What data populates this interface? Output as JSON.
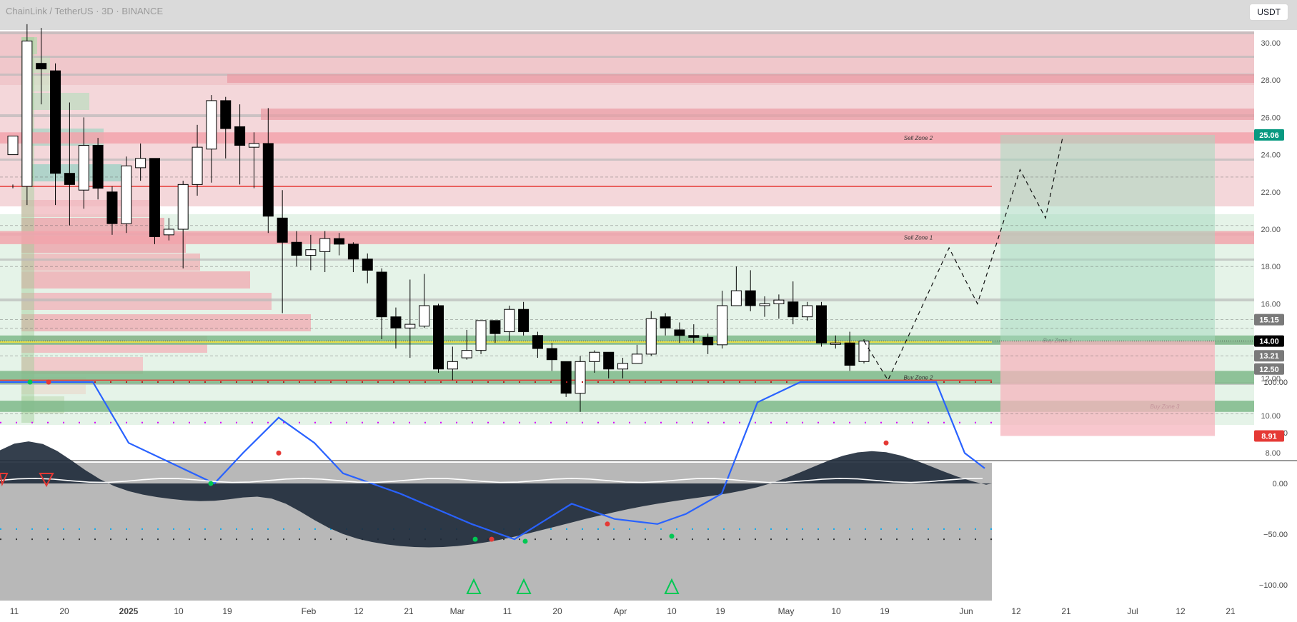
{
  "header": {
    "title": "ChainLink / TetherUS · 3D · BINANCE"
  },
  "toolbar": {
    "currency": "USDT"
  },
  "colors": {
    "sell_zone": "#f2a3ab",
    "buy_zone": "#7fb98a",
    "up_candle": "#ffffff",
    "down_candle": "#000000",
    "target_box": "#a8d8c0",
    "stop_box": "#f6b4bd",
    "indicator_bg": "#b8b8b8",
    "wave_blue": "#2962ff",
    "support_red": "#e53935",
    "current_line": "#ffeb3b"
  },
  "chart_data": {
    "type": "candlestick",
    "title": "ChainLink / TetherUS · 3D · BINANCE",
    "y_axis": {
      "ticks": [
        "30.00",
        "28.00",
        "26.00",
        "24.00",
        "22.00",
        "20.00",
        "18.00",
        "16.00",
        "14.00",
        "12.00",
        "10.00",
        "8.00"
      ],
      "range": [
        8,
        31.5
      ]
    },
    "x_axis": {
      "labels": [
        "11",
        "20",
        "2025",
        "10",
        "19",
        "Feb",
        "12",
        "21",
        "Mar",
        "11",
        "20",
        "Apr",
        "10",
        "19",
        "May",
        "10",
        "19",
        "Jun",
        "12",
        "21",
        "Jul",
        "12",
        "21"
      ]
    },
    "price_tags": [
      {
        "label": "25.06",
        "value": 25.06,
        "style": "teal"
      },
      {
        "label": "15.15",
        "value": 15.15,
        "style": "gray"
      },
      {
        "label": "14.00",
        "value": 14.0,
        "style": "black"
      },
      {
        "label": "13.21",
        "value": 13.21,
        "style": "gray"
      },
      {
        "label": "12.50",
        "value": 12.5,
        "style": "gray"
      },
      {
        "label": "8.91",
        "value": 8.91,
        "style": "red"
      }
    ],
    "zones": [
      {
        "label": "Sell Zone 2",
        "from": 24.6,
        "to": 25.2,
        "kind": "sell"
      },
      {
        "label": "Sell Zone 1",
        "from": 19.2,
        "to": 19.9,
        "kind": "sell"
      },
      {
        "label": "Buy Zone 1",
        "from": 13.8,
        "to": 14.3,
        "kind": "buy"
      },
      {
        "label": "Buy Zone 2",
        "from": 11.7,
        "to": 12.4,
        "kind": "buy"
      },
      {
        "label": "Buy Zone 3",
        "from": 10.2,
        "to": 10.8,
        "kind": "buy"
      }
    ],
    "candles": [
      [
        0,
        24,
        25,
        22.4,
        22.2
      ],
      [
        1,
        22.3,
        30.1,
        31,
        21.3
      ],
      [
        2,
        28.9,
        28.6,
        30.8,
        26.7
      ],
      [
        3,
        28.5,
        23,
        28.9,
        21.3
      ],
      [
        4,
        23,
        22.4,
        26.8,
        20.2
      ],
      [
        5,
        22.1,
        24.5,
        26,
        21.1
      ],
      [
        6,
        24.5,
        22.2,
        24.9,
        21.6
      ],
      [
        7,
        22,
        20.3,
        22.3,
        19.7
      ],
      [
        8,
        20.3,
        23.4,
        23.9,
        19.8
      ],
      [
        9,
        23.3,
        23.8,
        24.6,
        22.6
      ],
      [
        10,
        23.8,
        19.6,
        23.8,
        19.2
      ],
      [
        11,
        19.7,
        20,
        20.6,
        19.4
      ],
      [
        12,
        20,
        22.4,
        22.6,
        17.9
      ],
      [
        13,
        22.4,
        24.4,
        25.6,
        21.8
      ],
      [
        14,
        24.3,
        26.9,
        27.2,
        22.5
      ],
      [
        15,
        26.9,
        25.4,
        27.1,
        23.8
      ],
      [
        16,
        25.5,
        24.5,
        26.7,
        22.4
      ],
      [
        17,
        24.4,
        24.6,
        25.2,
        22.2
      ],
      [
        18,
        24.6,
        20.7,
        26.5,
        19.8
      ],
      [
        19,
        20.6,
        19.3,
        22.1,
        15.5
      ],
      [
        20,
        19.3,
        18.6,
        19.9,
        18
      ],
      [
        21,
        18.6,
        18.9,
        19.7,
        17.8
      ],
      [
        22,
        18.8,
        19.5,
        19.9,
        17.7
      ],
      [
        23,
        19.5,
        19.2,
        19.8,
        18.6
      ],
      [
        24,
        19.2,
        18.4,
        19.3,
        17.7
      ],
      [
        25,
        18.4,
        17.8,
        18.7,
        17.1
      ],
      [
        26,
        17.7,
        15.3,
        17.9,
        14.1
      ],
      [
        27,
        15.3,
        14.7,
        15.8,
        13.6
      ],
      [
        28,
        14.7,
        14.9,
        17.3,
        13.1
      ],
      [
        29,
        14.8,
        15.9,
        17.6,
        14.7
      ],
      [
        30,
        15.9,
        12.5,
        16,
        12.3
      ],
      [
        31,
        12.5,
        12.9,
        13.7,
        11.9
      ],
      [
        32,
        13.1,
        13.5,
        14.6,
        13
      ],
      [
        33,
        13.5,
        15.1,
        15.1,
        13.3
      ],
      [
        34,
        15.1,
        14.4,
        15,
        13.9
      ],
      [
        35,
        14.5,
        15.7,
        15.9,
        14
      ],
      [
        36,
        15.7,
        14.5,
        16.1,
        14.3
      ],
      [
        37,
        14.3,
        13.6,
        14.5,
        13.1
      ],
      [
        38,
        13.6,
        13,
        13.9,
        12.4
      ],
      [
        39,
        12.9,
        11.2,
        12.9,
        11
      ],
      [
        40,
        11.2,
        12.9,
        13.2,
        10.2
      ],
      [
        41,
        12.9,
        13.4,
        13.5,
        12.3
      ],
      [
        42,
        13.4,
        12.5,
        13.3,
        12
      ],
      [
        43,
        12.5,
        12.8,
        13.1,
        12
      ],
      [
        44,
        12.8,
        13.3,
        13.8,
        12.9
      ],
      [
        45,
        13.3,
        15.2,
        15.6,
        13.2
      ],
      [
        46,
        15.3,
        14.7,
        15.5,
        14.3
      ],
      [
        47,
        14.6,
        14.3,
        15,
        13.9
      ],
      [
        48,
        14.3,
        14.2,
        14.9,
        13.9
      ],
      [
        49,
        14.2,
        13.8,
        14.4,
        13.3
      ],
      [
        50,
        13.8,
        15.9,
        16.7,
        13.6
      ],
      [
        51,
        15.9,
        16.7,
        18,
        16.2
      ],
      [
        52,
        16.7,
        15.9,
        17.8,
        15.6
      ],
      [
        53,
        15.9,
        16,
        16.4,
        15.3
      ],
      [
        54,
        16,
        16.2,
        16.5,
        15.2
      ],
      [
        55,
        16.1,
        15.3,
        17.2,
        14.9
      ],
      [
        56,
        15.3,
        15.9,
        16.1,
        15.1
      ],
      [
        57,
        15.9,
        13.9,
        16.1,
        13.7
      ],
      [
        58,
        13.9,
        13.9,
        14.3,
        13.6
      ],
      [
        59,
        13.9,
        12.7,
        14.5,
        12.4
      ],
      [
        60,
        12.9,
        14,
        14.1,
        12.8
      ]
    ],
    "projection_path": [
      [
        60,
        14
      ],
      [
        61.7,
        11.9
      ],
      [
        66,
        19
      ],
      [
        68,
        16
      ],
      [
        71,
        23.2
      ],
      [
        72.8,
        20.6
      ],
      [
        74,
        24.9
      ]
    ],
    "indicator": {
      "ticks": [
        "100.00",
        "50.00",
        "0.00",
        "−50.00",
        "−100.00"
      ],
      "range": [
        -108,
        112
      ]
    }
  }
}
